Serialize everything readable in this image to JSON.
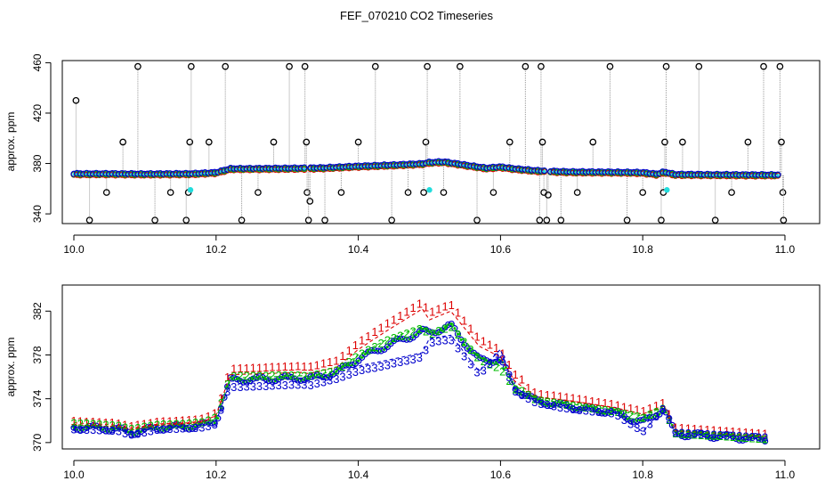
{
  "colors": {
    "series1": "#dd0000",
    "series2": "#00bb00",
    "series3": "#0000cc",
    "spike": "#000000",
    "marker": "#22dddd",
    "spikeline": "#999999"
  },
  "chart_data": [
    {
      "type": "scatter",
      "title": "FEF_070210  CO2 Timeseries",
      "xlabel": "",
      "ylabel": "approx. ppm",
      "xlim": [
        10.0,
        11.0
      ],
      "ylim": [
        333,
        461
      ],
      "xticks": [
        10.0,
        10.2,
        10.4,
        10.6,
        10.8,
        11.0
      ],
      "xtick_labels": [
        "10.0",
        "10.2",
        "10.4",
        "10.6",
        "10.8",
        "11.0"
      ],
      "yticks": [
        340,
        380,
        420,
        460
      ],
      "ytick_labels": [
        "340",
        "380",
        "420",
        "460"
      ],
      "baseline": [
        [
          10.0,
          371.5
        ],
        [
          10.05,
          371.5
        ],
        [
          10.1,
          371.3
        ],
        [
          10.15,
          371.5
        ],
        [
          10.165,
          371.5
        ],
        [
          10.2,
          372.5
        ],
        [
          10.22,
          375.5
        ],
        [
          10.25,
          375.6
        ],
        [
          10.3,
          375.8
        ],
        [
          10.33,
          376.0
        ],
        [
          10.35,
          376.2
        ],
        [
          10.4,
          377.5
        ],
        [
          10.45,
          378.5
        ],
        [
          10.49,
          379.5
        ],
        [
          10.5,
          380.5
        ],
        [
          10.52,
          381.0
        ],
        [
          10.55,
          378.5
        ],
        [
          10.58,
          376.0
        ],
        [
          10.6,
          377.0
        ],
        [
          10.62,
          375.5
        ],
        [
          10.65,
          374.0
        ],
        [
          10.67,
          373.5
        ],
        [
          10.7,
          373.0
        ],
        [
          10.75,
          372.8
        ],
        [
          10.8,
          372.5
        ],
        [
          10.82,
          371.2
        ],
        [
          10.83,
          373.0
        ],
        [
          10.845,
          371.0
        ],
        [
          10.9,
          370.8
        ],
        [
          10.95,
          370.6
        ],
        [
          10.99,
          370.6
        ]
      ],
      "spikes": [
        {
          "x": 10.003,
          "y": 430
        },
        {
          "x": 10.022,
          "y": 335
        },
        {
          "x": 10.046,
          "y": 357
        },
        {
          "x": 10.069,
          "y": 397
        },
        {
          "x": 10.09,
          "y": 457
        },
        {
          "x": 10.114,
          "y": 335
        },
        {
          "x": 10.136,
          "y": 357
        },
        {
          "x": 10.158,
          "y": 335
        },
        {
          "x": 10.161,
          "y": 357
        },
        {
          "x": 10.163,
          "y": 397
        },
        {
          "x": 10.165,
          "y": 457
        },
        {
          "x": 10.19,
          "y": 397
        },
        {
          "x": 10.213,
          "y": 457
        },
        {
          "x": 10.236,
          "y": 335
        },
        {
          "x": 10.259,
          "y": 357
        },
        {
          "x": 10.281,
          "y": 397
        },
        {
          "x": 10.303,
          "y": 457
        },
        {
          "x": 10.325,
          "y": 457
        },
        {
          "x": 10.327,
          "y": 397
        },
        {
          "x": 10.328,
          "y": 357
        },
        {
          "x": 10.33,
          "y": 335
        },
        {
          "x": 10.332,
          "y": 350
        },
        {
          "x": 10.353,
          "y": 335
        },
        {
          "x": 10.376,
          "y": 357
        },
        {
          "x": 10.4,
          "y": 397
        },
        {
          "x": 10.424,
          "y": 457
        },
        {
          "x": 10.447,
          "y": 335
        },
        {
          "x": 10.47,
          "y": 357
        },
        {
          "x": 10.492,
          "y": 357
        },
        {
          "x": 10.495,
          "y": 397
        },
        {
          "x": 10.497,
          "y": 457
        },
        {
          "x": 10.52,
          "y": 357
        },
        {
          "x": 10.543,
          "y": 457
        },
        {
          "x": 10.567,
          "y": 335
        },
        {
          "x": 10.59,
          "y": 357
        },
        {
          "x": 10.613,
          "y": 397
        },
        {
          "x": 10.635,
          "y": 457
        },
        {
          "x": 10.655,
          "y": 335
        },
        {
          "x": 10.657,
          "y": 457
        },
        {
          "x": 10.659,
          "y": 397
        },
        {
          "x": 10.661,
          "y": 357
        },
        {
          "x": 10.665,
          "y": 335
        },
        {
          "x": 10.667,
          "y": 355
        },
        {
          "x": 10.685,
          "y": 335
        },
        {
          "x": 10.708,
          "y": 357
        },
        {
          "x": 10.73,
          "y": 397
        },
        {
          "x": 10.754,
          "y": 457
        },
        {
          "x": 10.778,
          "y": 335
        },
        {
          "x": 10.8,
          "y": 357
        },
        {
          "x": 10.826,
          "y": 335
        },
        {
          "x": 10.829,
          "y": 357
        },
        {
          "x": 10.831,
          "y": 397
        },
        {
          "x": 10.833,
          "y": 457
        },
        {
          "x": 10.856,
          "y": 397
        },
        {
          "x": 10.879,
          "y": 457
        },
        {
          "x": 10.902,
          "y": 335
        },
        {
          "x": 10.925,
          "y": 357
        },
        {
          "x": 10.948,
          "y": 397
        },
        {
          "x": 10.97,
          "y": 457
        },
        {
          "x": 10.993,
          "y": 457
        },
        {
          "x": 10.995,
          "y": 397
        },
        {
          "x": 10.997,
          "y": 357
        },
        {
          "x": 10.998,
          "y": 335
        }
      ],
      "markers": [
        {
          "x": 10.164,
          "y": 359
        },
        {
          "x": 10.5,
          "y": 359
        },
        {
          "x": 10.834,
          "y": 359
        }
      ]
    },
    {
      "type": "line",
      "title": "",
      "xlabel": "",
      "ylabel": "approx. ppm",
      "xlim": [
        10.0,
        11.0
      ],
      "ylim": [
        369.5,
        384.3
      ],
      "xticks": [
        10.0,
        10.2,
        10.4,
        10.6,
        10.8,
        11.0
      ],
      "xtick_labels": [
        "10.0",
        "10.2",
        "10.4",
        "10.6",
        "10.8",
        "11.0"
      ],
      "yticks": [
        370,
        374,
        378,
        382
      ],
      "ytick_labels": [
        "370",
        "374",
        "378",
        "382"
      ],
      "point_symbols": [
        "1",
        "2",
        "3"
      ],
      "series": [
        {
          "name": "1",
          "x": [
            10.0,
            10.06,
            10.08,
            10.12,
            10.16,
            10.185,
            10.2,
            10.22,
            10.27,
            10.32,
            10.33,
            10.37,
            10.4,
            10.44,
            10.49,
            10.5,
            10.53,
            10.57,
            10.6,
            10.62,
            10.65,
            10.7,
            10.76,
            10.8,
            10.83,
            10.845,
            10.9,
            10.97
          ],
          "values": [
            371.8,
            371.6,
            371.3,
            371.7,
            371.8,
            372.0,
            372.5,
            376.2,
            376.3,
            376.4,
            376.3,
            376.9,
            378.5,
            380.2,
            382.2,
            381.2,
            382.0,
            378.8,
            377.8,
            375.6,
            374.2,
            373.8,
            373.2,
            372.6,
            373.4,
            371.1,
            370.9,
            370.6
          ]
        },
        {
          "name": "2",
          "x": [
            10.0,
            10.06,
            10.08,
            10.12,
            10.16,
            10.185,
            10.2,
            10.22,
            10.27,
            10.32,
            10.33,
            10.37,
            10.4,
            10.44,
            10.49,
            10.5,
            10.53,
            10.57,
            10.6,
            10.62,
            10.65,
            10.7,
            10.76,
            10.8,
            10.83,
            10.845,
            10.9,
            10.97
          ],
          "values": [
            371.6,
            371.4,
            371.1,
            371.5,
            371.6,
            371.8,
            372.2,
            375.9,
            376.0,
            376.1,
            376.0,
            376.6,
            378.0,
            379.4,
            380.6,
            380.0,
            380.8,
            377.8,
            377.0,
            375.2,
            374.0,
            373.5,
            373.0,
            372.4,
            373.3,
            371.0,
            370.8,
            370.5
          ]
        },
        {
          "name": "3",
          "x": [
            10.0,
            10.06,
            10.08,
            10.12,
            10.16,
            10.185,
            10.2,
            10.22,
            10.27,
            10.32,
            10.33,
            10.37,
            10.4,
            10.44,
            10.49,
            10.5,
            10.53,
            10.57,
            10.6,
            10.62,
            10.65,
            10.7,
            10.76,
            10.8,
            10.83,
            10.845,
            10.9,
            10.97
          ],
          "values": [
            371.4,
            371.3,
            370.9,
            371.4,
            371.5,
            371.6,
            371.9,
            375.6,
            375.7,
            375.8,
            375.7,
            376.3,
            377.0,
            377.5,
            378.2,
            379.5,
            379.8,
            376.5,
            378.5,
            374.8,
            373.7,
            373.1,
            372.7,
            371.0,
            373.2,
            370.9,
            370.7,
            370.4
          ]
        }
      ]
    }
  ]
}
